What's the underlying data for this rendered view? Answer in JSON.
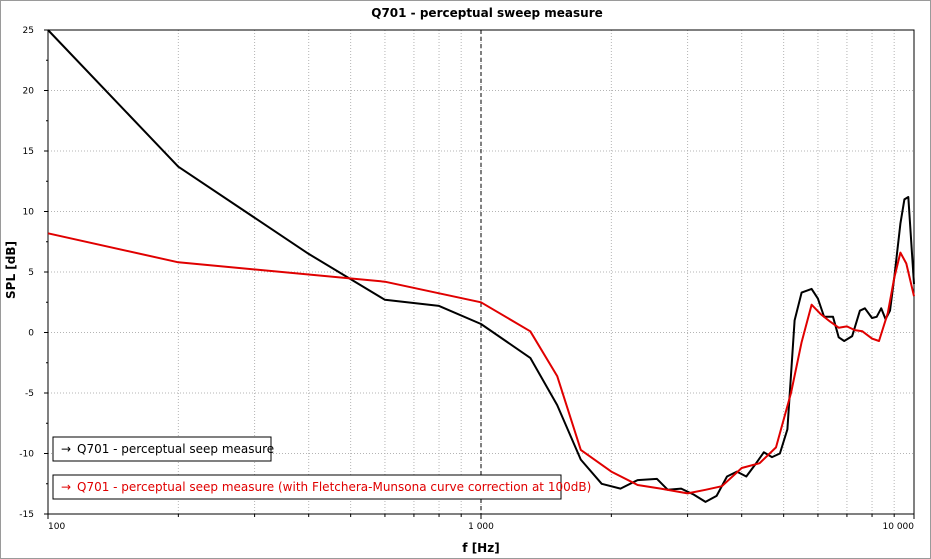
{
  "chart_data": {
    "type": "line",
    "title": "Q701 - perceptual sweep measure",
    "xlabel": "f [Hz]",
    "ylabel": "SPL [dB]",
    "xscale": "log",
    "xlim": [
      100,
      10000
    ],
    "ylim": [
      -15,
      25
    ],
    "grid": true,
    "legend_position": "bottom-left",
    "x_tick_labels": [
      {
        "value": 100,
        "label": "100"
      },
      {
        "value": 1000,
        "label": "1 000"
      },
      {
        "value": 10000,
        "label": "10 000"
      }
    ],
    "y_ticks": [
      25,
      20,
      15,
      10,
      5,
      0,
      -5,
      -10,
      -15
    ],
    "reference_line_x": 1000,
    "series": [
      {
        "name": "Q701 - perceptual seep measure",
        "color": "#000000",
        "x": [
          100,
          200,
          400,
          600,
          800,
          1000,
          1300,
          1500,
          1700,
          1900,
          2100,
          2300,
          2550,
          2700,
          2900,
          3100,
          3300,
          3500,
          3700,
          3900,
          4100,
          4300,
          4500,
          4700,
          4900,
          5100,
          5300,
          5500,
          5800,
          6000,
          6200,
          6500,
          6700,
          6900,
          7200,
          7500,
          7700,
          8000,
          8200,
          8400,
          8600,
          8800,
          9000,
          9300,
          9500,
          9700,
          10000
        ],
        "y": [
          25,
          13.7,
          6.5,
          2.7,
          2.2,
          0.7,
          -2.1,
          -6.0,
          -10.5,
          -12.5,
          -12.9,
          -12.2,
          -12.1,
          -13.0,
          -12.9,
          -13.4,
          -14.0,
          -13.5,
          -11.9,
          -11.5,
          -11.9,
          -10.9,
          -9.9,
          -10.3,
          -10.0,
          -8.0,
          1.0,
          3.3,
          3.6,
          2.8,
          1.3,
          1.3,
          -0.4,
          -0.7,
          -0.3,
          1.8,
          2.0,
          1.2,
          1.3,
          2.0,
          1.1,
          1.8,
          4.5,
          9.0,
          11.0,
          11.2,
          4.0
        ]
      },
      {
        "name": "Q701 - perceptual seep measure (with Fletchera-Munsona curve correction at 100dB)",
        "color": "#e00000",
        "x": [
          100,
          200,
          600,
          1000,
          1300,
          1500,
          1700,
          2000,
          2300,
          2600,
          3000,
          3300,
          3600,
          4000,
          4400,
          4800,
          5200,
          5500,
          5800,
          6100,
          6400,
          6700,
          7000,
          7300,
          7600,
          8000,
          8300,
          8700,
          9000,
          9300,
          9600,
          10000
        ],
        "y": [
          8.2,
          5.8,
          4.2,
          2.5,
          0.1,
          -3.6,
          -9.7,
          -11.5,
          -12.6,
          -12.9,
          -13.3,
          -13.0,
          -12.7,
          -11.2,
          -10.8,
          -9.5,
          -5.0,
          -0.8,
          2.3,
          1.5,
          0.9,
          0.4,
          0.5,
          0.2,
          0.1,
          -0.5,
          -0.7,
          1.6,
          4.5,
          6.6,
          5.7,
          3.0
        ]
      }
    ]
  }
}
